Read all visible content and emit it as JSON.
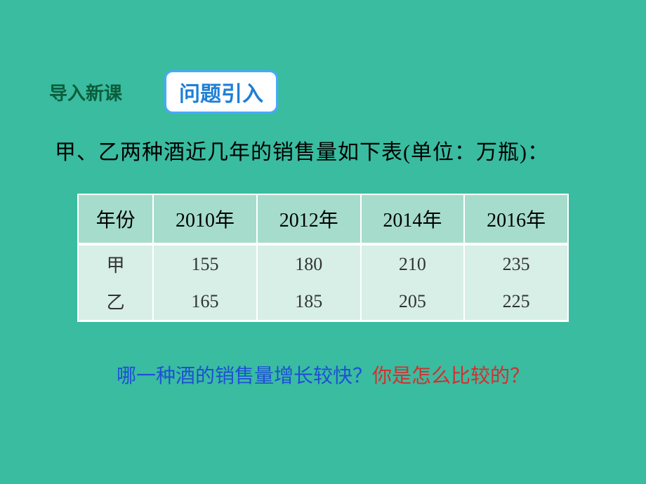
{
  "header": {
    "section_label": "导入新课",
    "topic_badge": "问题引入"
  },
  "intro": "甲、乙两种酒近几年的销售量如下表(单位：万瓶)：",
  "table": {
    "columns": [
      "年份",
      "2010年",
      "2012年",
      "2014年",
      "2016年"
    ],
    "rows": [
      {
        "label": "甲",
        "values": [
          "155",
          "180",
          "210",
          "235"
        ]
      },
      {
        "label": "乙",
        "values": [
          "165",
          "185",
          "205",
          "225"
        ]
      }
    ],
    "header_bg": "#a6dccc",
    "cell_bg": "#d7efe7",
    "border_color": "#ffffff",
    "header_fontsize": 28,
    "cell_fontsize": 26
  },
  "question": {
    "part1": "哪一种酒的销售量增长较快？",
    "part2": "你是怎么比较的？",
    "part1_color": "#1e4fd6",
    "part2_color": "#d62e2e"
  },
  "background_color": "#39bca0"
}
